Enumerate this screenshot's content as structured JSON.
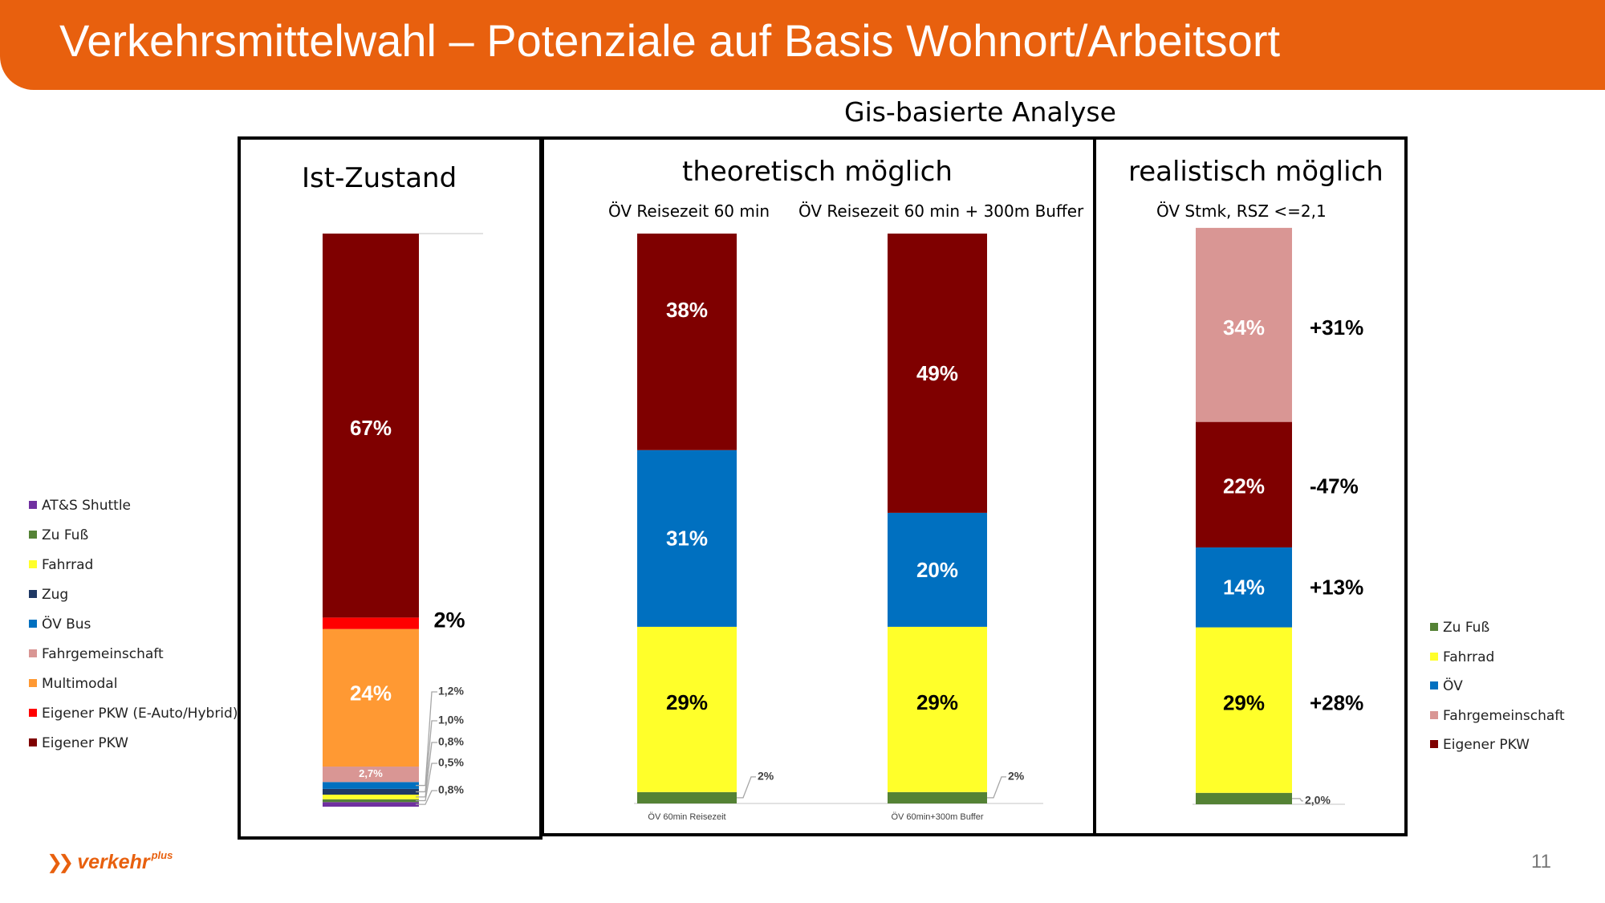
{
  "header": {
    "title": "Verkehrsmittelwahl – Potenziale auf Basis Wohnort/Arbeitsort"
  },
  "subtitle": "Gis-basierte Analyse",
  "panels": {
    "ist": {
      "title": "Ist-Zustand"
    },
    "theoretisch": {
      "title": "theoretisch möglich",
      "sub1": "ÖV Reisezeit 60 min",
      "sub2": "ÖV Reisezeit 60 min + 300m Buffer"
    },
    "realistisch": {
      "title": "realistisch möglich",
      "sub1": "ÖV Stmk, RSZ <=2,1"
    }
  },
  "legend_left": [
    {
      "label": "AT&S Shuttle",
      "color": "#7030a0"
    },
    {
      "label": "Zu Fuß",
      "color": "#548235"
    },
    {
      "label": "Fahrrad",
      "color": "#ffff2a"
    },
    {
      "label": "Zug",
      "color": "#1f3864"
    },
    {
      "label": "ÖV Bus",
      "color": "#0070c0"
    },
    {
      "label": "Fahrgemeinschaft",
      "color": "#d99694"
    },
    {
      "label": "Multimodal",
      "color": "#ff9933"
    },
    {
      "label": "Eigener PKW (E-Auto/Hybrid)",
      "color": "#ff0000"
    },
    {
      "label": "Eigener PKW",
      "color": "#7f0000"
    }
  ],
  "legend_right": [
    {
      "label": "Zu Fuß",
      "color": "#548235"
    },
    {
      "label": "Fahrrad",
      "color": "#ffff2a"
    },
    {
      "label": "ÖV",
      "color": "#0070c0"
    },
    {
      "label": "Fahrgemeinschaft",
      "color": "#d99694"
    },
    {
      "label": "Eigener PKW",
      "color": "#7f0000"
    }
  ],
  "chart_data": [
    {
      "type": "bar",
      "stacked": true,
      "title": "Ist-Zustand",
      "categories": [
        "Ist-Zustand"
      ],
      "series": [
        {
          "name": "AT&S Shuttle",
          "values": [
            0.8
          ],
          "label": "0,8%"
        },
        {
          "name": "Zu Fuß",
          "values": [
            0.5
          ],
          "label": "0,5%"
        },
        {
          "name": "Fahrrad",
          "values": [
            0.8
          ],
          "label": "0,8%"
        },
        {
          "name": "Zug",
          "values": [
            1.0
          ],
          "label": "1,0%"
        },
        {
          "name": "ÖV Bus",
          "values": [
            1.2
          ],
          "label": "1,2%"
        },
        {
          "name": "Fahrgemeinschaft",
          "values": [
            2.7
          ],
          "label": "2,7%"
        },
        {
          "name": "Multimodal",
          "values": [
            24
          ],
          "label": "24%"
        },
        {
          "name": "Eigener PKW (E-Auto/Hybrid)",
          "values": [
            2
          ],
          "label": "2%"
        },
        {
          "name": "Eigener PKW",
          "values": [
            67
          ],
          "label": "67%"
        }
      ]
    },
    {
      "type": "bar",
      "stacked": true,
      "title": "theoretisch möglich",
      "categories": [
        "ÖV 60min Reisezeit",
        "ÖV 60min+300m Buffer"
      ],
      "series": [
        {
          "name": "Zu Fuß",
          "values": [
            2,
            2
          ],
          "labels": [
            "2%",
            "2%"
          ]
        },
        {
          "name": "Fahrrad",
          "values": [
            29,
            29
          ],
          "labels": [
            "29%",
            "29%"
          ]
        },
        {
          "name": "ÖV",
          "values": [
            31,
            20
          ],
          "labels": [
            "31%",
            "20%"
          ]
        },
        {
          "name": "Eigener PKW",
          "values": [
            38,
            49
          ],
          "labels": [
            "38%",
            "49%"
          ]
        }
      ]
    },
    {
      "type": "bar",
      "stacked": true,
      "title": "realistisch möglich",
      "categories": [
        "ÖV Stmk, RSZ <=2,1"
      ],
      "series": [
        {
          "name": "Zu Fuß",
          "values": [
            2.0
          ],
          "label": "2,0%"
        },
        {
          "name": "Fahrrad",
          "values": [
            29
          ],
          "label": "29%",
          "change": "+28%"
        },
        {
          "name": "ÖV",
          "values": [
            14
          ],
          "label": "14%",
          "change": "+13%"
        },
        {
          "name": "Eigener PKW",
          "values": [
            22
          ],
          "label": "22%",
          "change": "-47%"
        },
        {
          "name": "Fahrgemeinschaft",
          "values": [
            34
          ],
          "label": "34%",
          "change": "+31%"
        }
      ]
    }
  ],
  "footer": {
    "logo_text": "verkehr",
    "logo_sup": "plus",
    "page_number": "11"
  }
}
